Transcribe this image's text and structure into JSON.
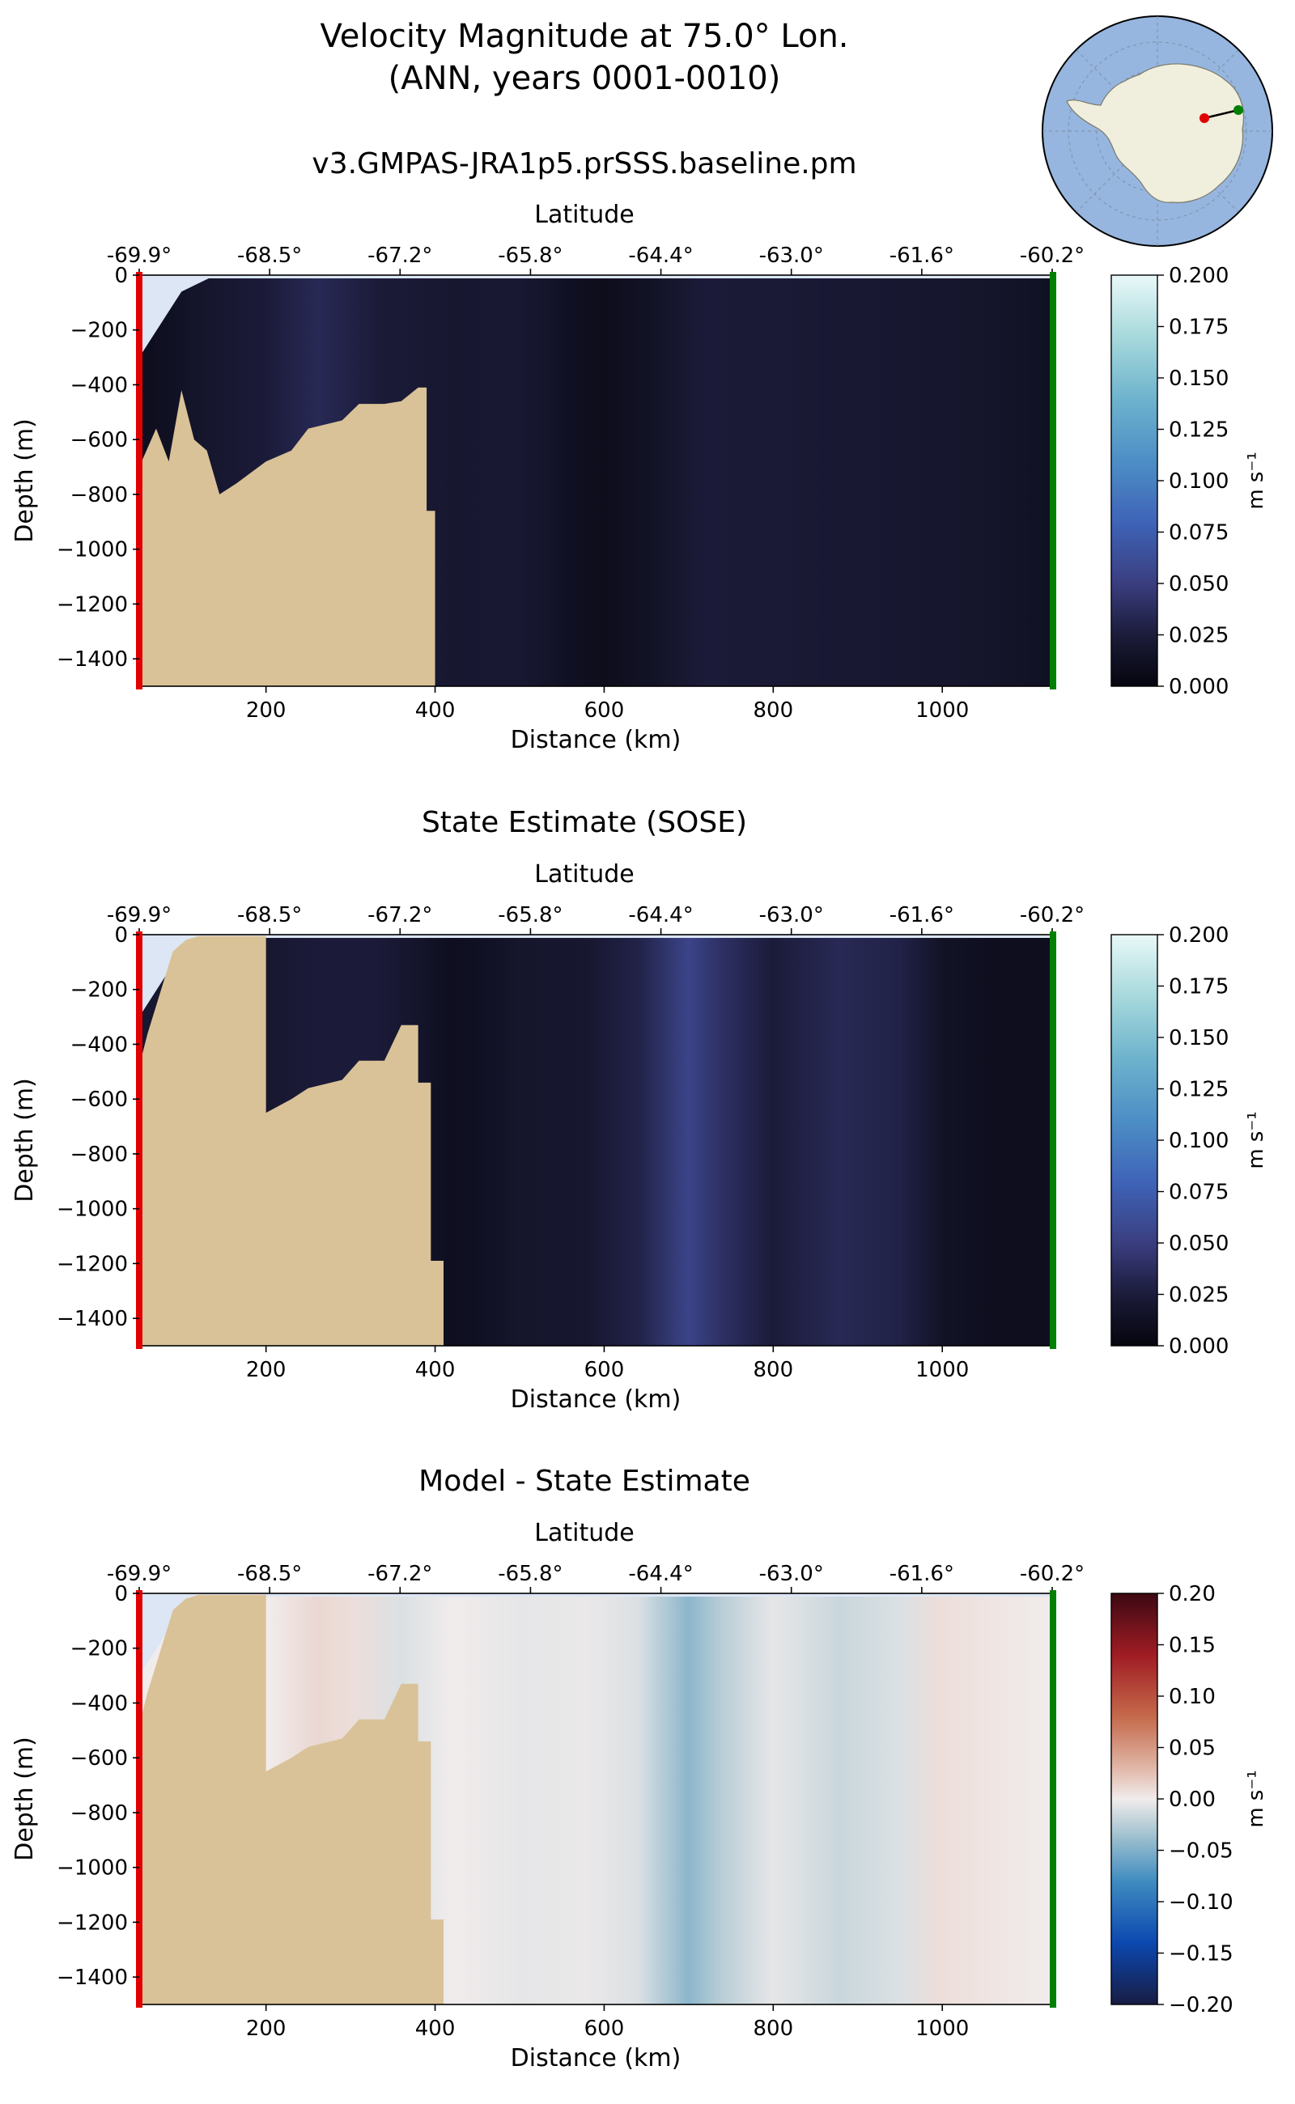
{
  "header": {
    "title_line1": "Velocity Magnitude at 75.0° Lon.",
    "title_line2": "(ANN, years 0001-0010)"
  },
  "colors": {
    "land": "#d9c297",
    "ice_shelf": "#dce6f4",
    "start_marker": "#e00000",
    "end_marker": "#008000",
    "ocean_map": "#96b6df",
    "continent_map": "#f0eedc"
  },
  "inset_map": {
    "type": "polar-stereographic-south",
    "start_point_color": "red",
    "end_point_color": "green"
  },
  "chart_data": [
    {
      "type": "heatmap",
      "title": "v3.GMPAS-JRA1p5.prSSS.baseline.pm",
      "xlabel": "Distance (km)",
      "ylabel": "Depth (m)",
      "top_xlabel": "Latitude",
      "xlim": [
        50,
        1130
      ],
      "ylim": [
        -1500,
        0
      ],
      "x_ticks": [
        "200",
        "400",
        "600",
        "800",
        "1000"
      ],
      "y_ticks": [
        "0",
        "−200",
        "−400",
        "−600",
        "−800",
        "−1000",
        "−1200",
        "−1400"
      ],
      "lat_ticks": [
        "-69.9°",
        "-68.5°",
        "-67.2°",
        "-65.8°",
        "-64.4°",
        "-63.0°",
        "-61.6°",
        "-60.2°"
      ],
      "colorbar": {
        "label": "m s⁻¹",
        "colormap": "dense-dark-blue",
        "range": [
          0,
          0.2
        ],
        "ticks": [
          "0.200",
          "0.175",
          "0.150",
          "0.125",
          "0.100",
          "0.075",
          "0.050",
          "0.025",
          "0.000"
        ]
      },
      "column_values": [
        {
          "x": 60,
          "v": 0.01
        },
        {
          "x": 140,
          "v": 0.02
        },
        {
          "x": 200,
          "v": 0.025
        },
        {
          "x": 260,
          "v": 0.035
        },
        {
          "x": 330,
          "v": 0.025
        },
        {
          "x": 420,
          "v": 0.02
        },
        {
          "x": 500,
          "v": 0.022
        },
        {
          "x": 560,
          "v": 0.012
        },
        {
          "x": 600,
          "v": 0.008
        },
        {
          "x": 660,
          "v": 0.015
        },
        {
          "x": 720,
          "v": 0.025
        },
        {
          "x": 800,
          "v": 0.024
        },
        {
          "x": 880,
          "v": 0.022
        },
        {
          "x": 960,
          "v": 0.02
        },
        {
          "x": 1040,
          "v": 0.018
        },
        {
          "x": 1100,
          "v": 0.015
        },
        {
          "x": 1130,
          "v": 0.012
        }
      ],
      "bathymetry": [
        [
          50,
          -1500
        ],
        [
          50,
          -700
        ],
        [
          70,
          -560
        ],
        [
          85,
          -680
        ],
        [
          100,
          -420
        ],
        [
          115,
          -600
        ],
        [
          130,
          -640
        ],
        [
          145,
          -800
        ],
        [
          165,
          -760
        ],
        [
          200,
          -680
        ],
        [
          230,
          -640
        ],
        [
          250,
          -560
        ],
        [
          290,
          -530
        ],
        [
          310,
          -470
        ],
        [
          340,
          -470
        ],
        [
          360,
          -460
        ],
        [
          380,
          -410
        ],
        [
          390,
          -410
        ],
        [
          390,
          -860
        ],
        [
          400,
          -860
        ],
        [
          400,
          -1500
        ]
      ]
    },
    {
      "type": "heatmap",
      "title": "State Estimate (SOSE)",
      "xlabel": "Distance (km)",
      "ylabel": "Depth (m)",
      "top_xlabel": "Latitude",
      "xlim": [
        50,
        1130
      ],
      "ylim": [
        -1500,
        0
      ],
      "x_ticks": [
        "200",
        "400",
        "600",
        "800",
        "1000"
      ],
      "y_ticks": [
        "0",
        "−200",
        "−400",
        "−600",
        "−800",
        "−1000",
        "−1200",
        "−1400"
      ],
      "lat_ticks": [
        "-69.9°",
        "-68.5°",
        "-67.2°",
        "-65.8°",
        "-64.4°",
        "-63.0°",
        "-61.6°",
        "-60.2°"
      ],
      "colorbar": {
        "label": "m s⁻¹",
        "colormap": "dense-dark-blue",
        "range": [
          0,
          0.2
        ],
        "ticks": [
          "0.200",
          "0.175",
          "0.150",
          "0.125",
          "0.100",
          "0.075",
          "0.050",
          "0.025",
          "0.000"
        ]
      },
      "column_values": [
        {
          "x": 200,
          "v": 0.02
        },
        {
          "x": 260,
          "v": 0.025
        },
        {
          "x": 330,
          "v": 0.025
        },
        {
          "x": 420,
          "v": 0.01
        },
        {
          "x": 500,
          "v": 0.018
        },
        {
          "x": 580,
          "v": 0.02
        },
        {
          "x": 640,
          "v": 0.03
        },
        {
          "x": 700,
          "v": 0.055
        },
        {
          "x": 740,
          "v": 0.04
        },
        {
          "x": 800,
          "v": 0.025
        },
        {
          "x": 880,
          "v": 0.035
        },
        {
          "x": 950,
          "v": 0.03
        },
        {
          "x": 1000,
          "v": 0.015
        },
        {
          "x": 1060,
          "v": 0.01
        },
        {
          "x": 1130,
          "v": 0.01
        }
      ],
      "bathymetry": [
        [
          50,
          -1500
        ],
        [
          50,
          -480
        ],
        [
          60,
          -360
        ],
        [
          70,
          -260
        ],
        [
          80,
          -160
        ],
        [
          90,
          -60
        ],
        [
          105,
          -20
        ],
        [
          120,
          -5
        ],
        [
          200,
          -5
        ],
        [
          200,
          -650
        ],
        [
          230,
          -600
        ],
        [
          250,
          -560
        ],
        [
          290,
          -530
        ],
        [
          310,
          -460
        ],
        [
          340,
          -460
        ],
        [
          360,
          -330
        ],
        [
          380,
          -330
        ],
        [
          380,
          -540
        ],
        [
          395,
          -540
        ],
        [
          395,
          -1190
        ],
        [
          410,
          -1190
        ],
        [
          410,
          -1500
        ]
      ]
    },
    {
      "type": "heatmap",
      "title": "Model - State Estimate",
      "xlabel": "Distance (km)",
      "ylabel": "Depth (m)",
      "top_xlabel": "Latitude",
      "xlim": [
        50,
        1130
      ],
      "ylim": [
        -1500,
        0
      ],
      "x_ticks": [
        "200",
        "400",
        "600",
        "800",
        "1000"
      ],
      "y_ticks": [
        "0",
        "−200",
        "−400",
        "−600",
        "−800",
        "−1000",
        "−1200",
        "−1400"
      ],
      "lat_ticks": [
        "-69.9°",
        "-68.5°",
        "-67.2°",
        "-65.8°",
        "-64.4°",
        "-63.0°",
        "-61.6°",
        "-60.2°"
      ],
      "colorbar": {
        "label": "m s⁻¹",
        "colormap": "balance",
        "range": [
          -0.2,
          0.2
        ],
        "ticks": [
          "0.20",
          "0.15",
          "0.10",
          "0.05",
          "0.00",
          "−0.05",
          "−0.10",
          "−0.15",
          "−0.20"
        ]
      },
      "column_values": [
        {
          "x": 200,
          "v": 0.0
        },
        {
          "x": 260,
          "v": 0.012
        },
        {
          "x": 300,
          "v": 0.008
        },
        {
          "x": 360,
          "v": -0.01
        },
        {
          "x": 420,
          "v": 0.0
        },
        {
          "x": 500,
          "v": -0.005
        },
        {
          "x": 580,
          "v": -0.003
        },
        {
          "x": 640,
          "v": -0.01
        },
        {
          "x": 700,
          "v": -0.045
        },
        {
          "x": 740,
          "v": -0.025
        },
        {
          "x": 800,
          "v": -0.005
        },
        {
          "x": 880,
          "v": -0.018
        },
        {
          "x": 950,
          "v": -0.01
        },
        {
          "x": 1000,
          "v": 0.008
        },
        {
          "x": 1060,
          "v": 0.004
        },
        {
          "x": 1130,
          "v": 0.0
        }
      ],
      "bathymetry": [
        [
          50,
          -1500
        ],
        [
          50,
          -480
        ],
        [
          60,
          -360
        ],
        [
          70,
          -260
        ],
        [
          80,
          -160
        ],
        [
          90,
          -60
        ],
        [
          105,
          -20
        ],
        [
          120,
          -5
        ],
        [
          200,
          -5
        ],
        [
          200,
          -650
        ],
        [
          230,
          -600
        ],
        [
          250,
          -560
        ],
        [
          290,
          -530
        ],
        [
          310,
          -460
        ],
        [
          340,
          -460
        ],
        [
          360,
          -330
        ],
        [
          380,
          -330
        ],
        [
          380,
          -540
        ],
        [
          395,
          -540
        ],
        [
          395,
          -1190
        ],
        [
          410,
          -1190
        ],
        [
          410,
          -1500
        ]
      ]
    }
  ]
}
